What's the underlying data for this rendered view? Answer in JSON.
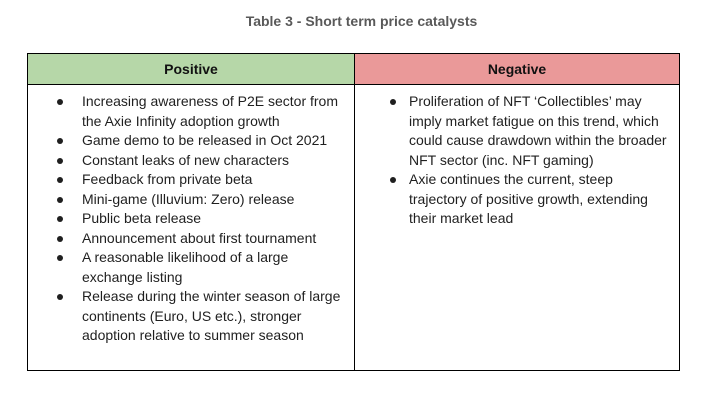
{
  "title": "Table 3 - Short term price catalysts",
  "table": {
    "positive_header": "Positive",
    "negative_header": "Negative",
    "positive_items": [
      "Increasing awareness of P2E sector from the Axie Infinity adoption growth",
      "Game demo to be released in Oct 2021",
      "Constant leaks of new characters",
      "Feedback from private beta",
      "Mini-game (Illuvium: Zero) release",
      "Public beta release",
      "Announcement about first tournament",
      "A reasonable likelihood of a large exchange listing",
      "Release during the winter season of large continents (Euro, US etc.), stronger adoption relative to summer season"
    ],
    "negative_items": [
      "Proliferation of NFT ‘Collectibles’ may imply market fatigue on this trend, which could cause drawdown within the broader NFT sector (inc. NFT gaming)",
      "Axie continues the current, steep trajectory of positive growth, extending their market lead"
    ]
  },
  "colors": {
    "positive_header_bg": "#b6d7a8",
    "negative_header_bg": "#ea9999",
    "title_text": "#595959"
  }
}
